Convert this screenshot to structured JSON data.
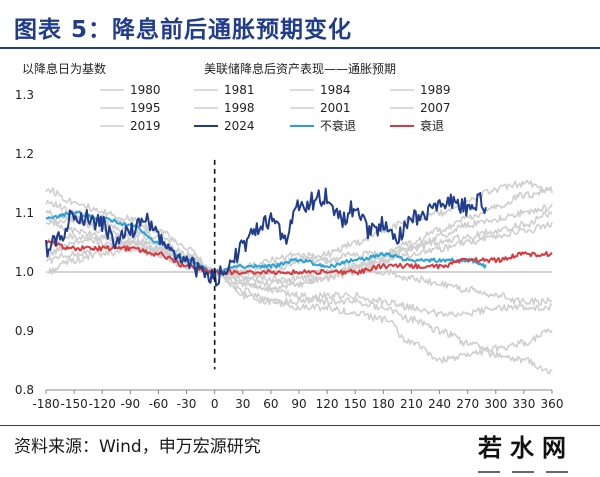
{
  "header": {
    "title": "图表 5：降息前后通胀预期变化"
  },
  "footer": {
    "source": "资料来源：Wind，申万宏源研究",
    "watermark": "若水网"
  },
  "colors": {
    "brand": "#1f3d8c",
    "gray_series": "#cfcfcf",
    "series_2024": "#1f3d8c",
    "no_recession": "#29a3d6",
    "recession": "#d9393d"
  },
  "chart_data": {
    "type": "line",
    "title": "美联储降息后资产表现——通胀预期",
    "ylabel": "以降息日为基数",
    "xlabel": "",
    "xlim": [
      -180,
      360
    ],
    "ylim": [
      0.8,
      1.3
    ],
    "xticks": [
      -180,
      -150,
      -120,
      -90,
      -60,
      -30,
      0,
      30,
      60,
      90,
      120,
      150,
      180,
      210,
      240,
      270,
      300,
      330,
      360
    ],
    "yticks": [
      "0.8",
      "0.9",
      "1.0",
      "1.1",
      "1.2",
      "1.3"
    ],
    "reference_line_y": 1.0,
    "event_line_x": 0,
    "legend": [
      "1980",
      "1981",
      "1984",
      "1989",
      "1995",
      "1998",
      "2001",
      "2007",
      "2019",
      "2024",
      "不衰退",
      "衰退"
    ],
    "series": [
      {
        "name": "1980",
        "color": "#cfcfcf",
        "x": [
          -180,
          -150,
          -120,
          -90,
          -60,
          -30,
          0,
          30,
          60,
          90,
          120,
          150,
          180,
          210,
          240,
          270,
          300,
          330,
          360
        ],
        "values": [
          1.03,
          1.05,
          1.06,
          1.05,
          1.04,
          1.03,
          1.0,
          0.99,
          1.0,
          1.02,
          1.03,
          1.05,
          1.07,
          1.09,
          1.1,
          1.12,
          1.14,
          1.15,
          1.14
        ]
      },
      {
        "name": "1981",
        "color": "#cfcfcf",
        "x": [
          -180,
          -150,
          -120,
          -90,
          -60,
          -30,
          0,
          30,
          60,
          90,
          120,
          150,
          180,
          210,
          240,
          270,
          300,
          330,
          360
        ],
        "values": [
          1.12,
          1.1,
          1.09,
          1.08,
          1.06,
          1.03,
          1.0,
          0.98,
          0.97,
          0.98,
          0.99,
          1.0,
          1.02,
          1.04,
          1.06,
          1.08,
          1.09,
          1.1,
          1.11
        ]
      },
      {
        "name": "1984",
        "color": "#cfcfcf",
        "x": [
          -180,
          -150,
          -120,
          -90,
          -60,
          -30,
          0,
          30,
          60,
          90,
          120,
          150,
          180,
          210,
          240,
          270,
          300,
          330,
          360
        ],
        "values": [
          1.0,
          1.02,
          1.03,
          1.04,
          1.03,
          1.02,
          1.0,
          0.98,
          0.97,
          0.96,
          0.95,
          0.95,
          0.94,
          0.92,
          0.9,
          0.88,
          0.86,
          0.85,
          0.83
        ]
      },
      {
        "name": "1989",
        "color": "#cfcfcf",
        "x": [
          -180,
          -150,
          -120,
          -90,
          -60,
          -30,
          0,
          30,
          60,
          90,
          120,
          150,
          180,
          210,
          240,
          270,
          300,
          330,
          360
        ],
        "values": [
          1.05,
          1.06,
          1.05,
          1.04,
          1.03,
          1.01,
          1.0,
          0.99,
          0.98,
          0.99,
          1.0,
          1.01,
          1.02,
          1.03,
          1.04,
          1.05,
          1.06,
          1.07,
          1.08
        ]
      },
      {
        "name": "1995",
        "color": "#cfcfcf",
        "x": [
          -180,
          -150,
          -120,
          -90,
          -60,
          -30,
          0,
          30,
          60,
          90,
          120,
          150,
          180,
          210,
          240,
          270,
          300,
          330,
          360
        ],
        "values": [
          1.1,
          1.09,
          1.07,
          1.06,
          1.04,
          1.02,
          1.0,
          1.0,
          1.01,
          1.02,
          1.02,
          1.03,
          1.03,
          1.04,
          1.05,
          1.06,
          1.07,
          1.08,
          1.1
        ]
      },
      {
        "name": "1998",
        "color": "#cfcfcf",
        "x": [
          -180,
          -150,
          -120,
          -90,
          -60,
          -30,
          0,
          30,
          60,
          90,
          120,
          150,
          180,
          210,
          240,
          270,
          300,
          330,
          360
        ],
        "values": [
          1.08,
          1.09,
          1.08,
          1.07,
          1.05,
          1.02,
          1.0,
          0.97,
          0.95,
          0.95,
          0.96,
          0.96,
          0.95,
          0.94,
          0.93,
          0.93,
          0.94,
          0.94,
          0.94
        ]
      },
      {
        "name": "2001",
        "color": "#cfcfcf",
        "x": [
          -180,
          -150,
          -120,
          -90,
          -60,
          -30,
          0,
          30,
          60,
          90,
          120,
          150,
          180,
          210,
          240,
          270,
          300,
          330,
          360
        ],
        "values": [
          1.14,
          1.12,
          1.1,
          1.09,
          1.07,
          1.04,
          1.0,
          0.96,
          0.95,
          0.94,
          0.94,
          0.93,
          0.92,
          0.88,
          0.85,
          0.86,
          0.87,
          0.88,
          0.9
        ]
      },
      {
        "name": "2007",
        "color": "#cfcfcf",
        "x": [
          -180,
          -150,
          -120,
          -90,
          -60,
          -30,
          0,
          30,
          60,
          90,
          120,
          150,
          180,
          210,
          240,
          270,
          300,
          330,
          360
        ],
        "values": [
          1.02,
          1.03,
          1.04,
          1.05,
          1.04,
          1.02,
          1.0,
          1.01,
          1.02,
          1.03,
          1.02,
          1.01,
          1.0,
          0.99,
          0.98,
          0.97,
          0.96,
          0.95,
          0.95
        ]
      },
      {
        "name": "2019",
        "color": "#cfcfcf",
        "x": [
          -180,
          -150,
          -120,
          -90,
          -60,
          -30,
          0,
          30,
          60,
          90,
          120,
          150,
          180,
          210,
          240,
          270,
          300,
          330,
          360
        ],
        "values": [
          1.09,
          1.07,
          1.06,
          1.05,
          1.03,
          1.01,
          1.0,
          1.0,
          0.99,
          0.98,
          0.99,
          1.01,
          1.03,
          1.05,
          1.07,
          1.09,
          1.11,
          1.13,
          1.14
        ]
      },
      {
        "name": "2024",
        "color": "#1f3d8c",
        "x": [
          -180,
          -165,
          -150,
          -135,
          -120,
          -105,
          -90,
          -75,
          -60,
          -45,
          -30,
          -15,
          0,
          15,
          30,
          45,
          60,
          75,
          90,
          105,
          120,
          135,
          150,
          165,
          180,
          195,
          210,
          225,
          240,
          255,
          270,
          285,
          290
        ],
        "values": [
          1.04,
          1.06,
          1.1,
          1.09,
          1.08,
          1.05,
          1.07,
          1.09,
          1.06,
          1.03,
          1.02,
          1.0,
          0.99,
          1.01,
          1.04,
          1.07,
          1.09,
          1.06,
          1.11,
          1.12,
          1.13,
          1.09,
          1.11,
          1.07,
          1.08,
          1.06,
          1.09,
          1.1,
          1.11,
          1.12,
          1.11,
          1.12,
          1.1
        ]
      },
      {
        "name": "不衰退",
        "color": "#29a3d6",
        "x": [
          -180,
          -150,
          -120,
          -90,
          -60,
          -30,
          0,
          30,
          60,
          90,
          120,
          150,
          180,
          210,
          240,
          270,
          290
        ],
        "values": [
          1.09,
          1.1,
          1.09,
          1.08,
          1.05,
          1.02,
          1.0,
          1.01,
          1.01,
          1.02,
          1.01,
          1.02,
          1.03,
          1.02,
          1.02,
          1.02,
          1.01
        ]
      },
      {
        "name": "衰退",
        "color": "#d9393d",
        "x": [
          -180,
          -150,
          -120,
          -90,
          -60,
          -30,
          0,
          30,
          60,
          90,
          120,
          150,
          180,
          210,
          240,
          270,
          300,
          330,
          360
        ],
        "values": [
          1.05,
          1.04,
          1.04,
          1.04,
          1.03,
          1.01,
          1.0,
          1.0,
          1.0,
          1.0,
          1.0,
          1.0,
          1.01,
          1.01,
          1.01,
          1.02,
          1.02,
          1.03,
          1.03
        ]
      }
    ]
  }
}
